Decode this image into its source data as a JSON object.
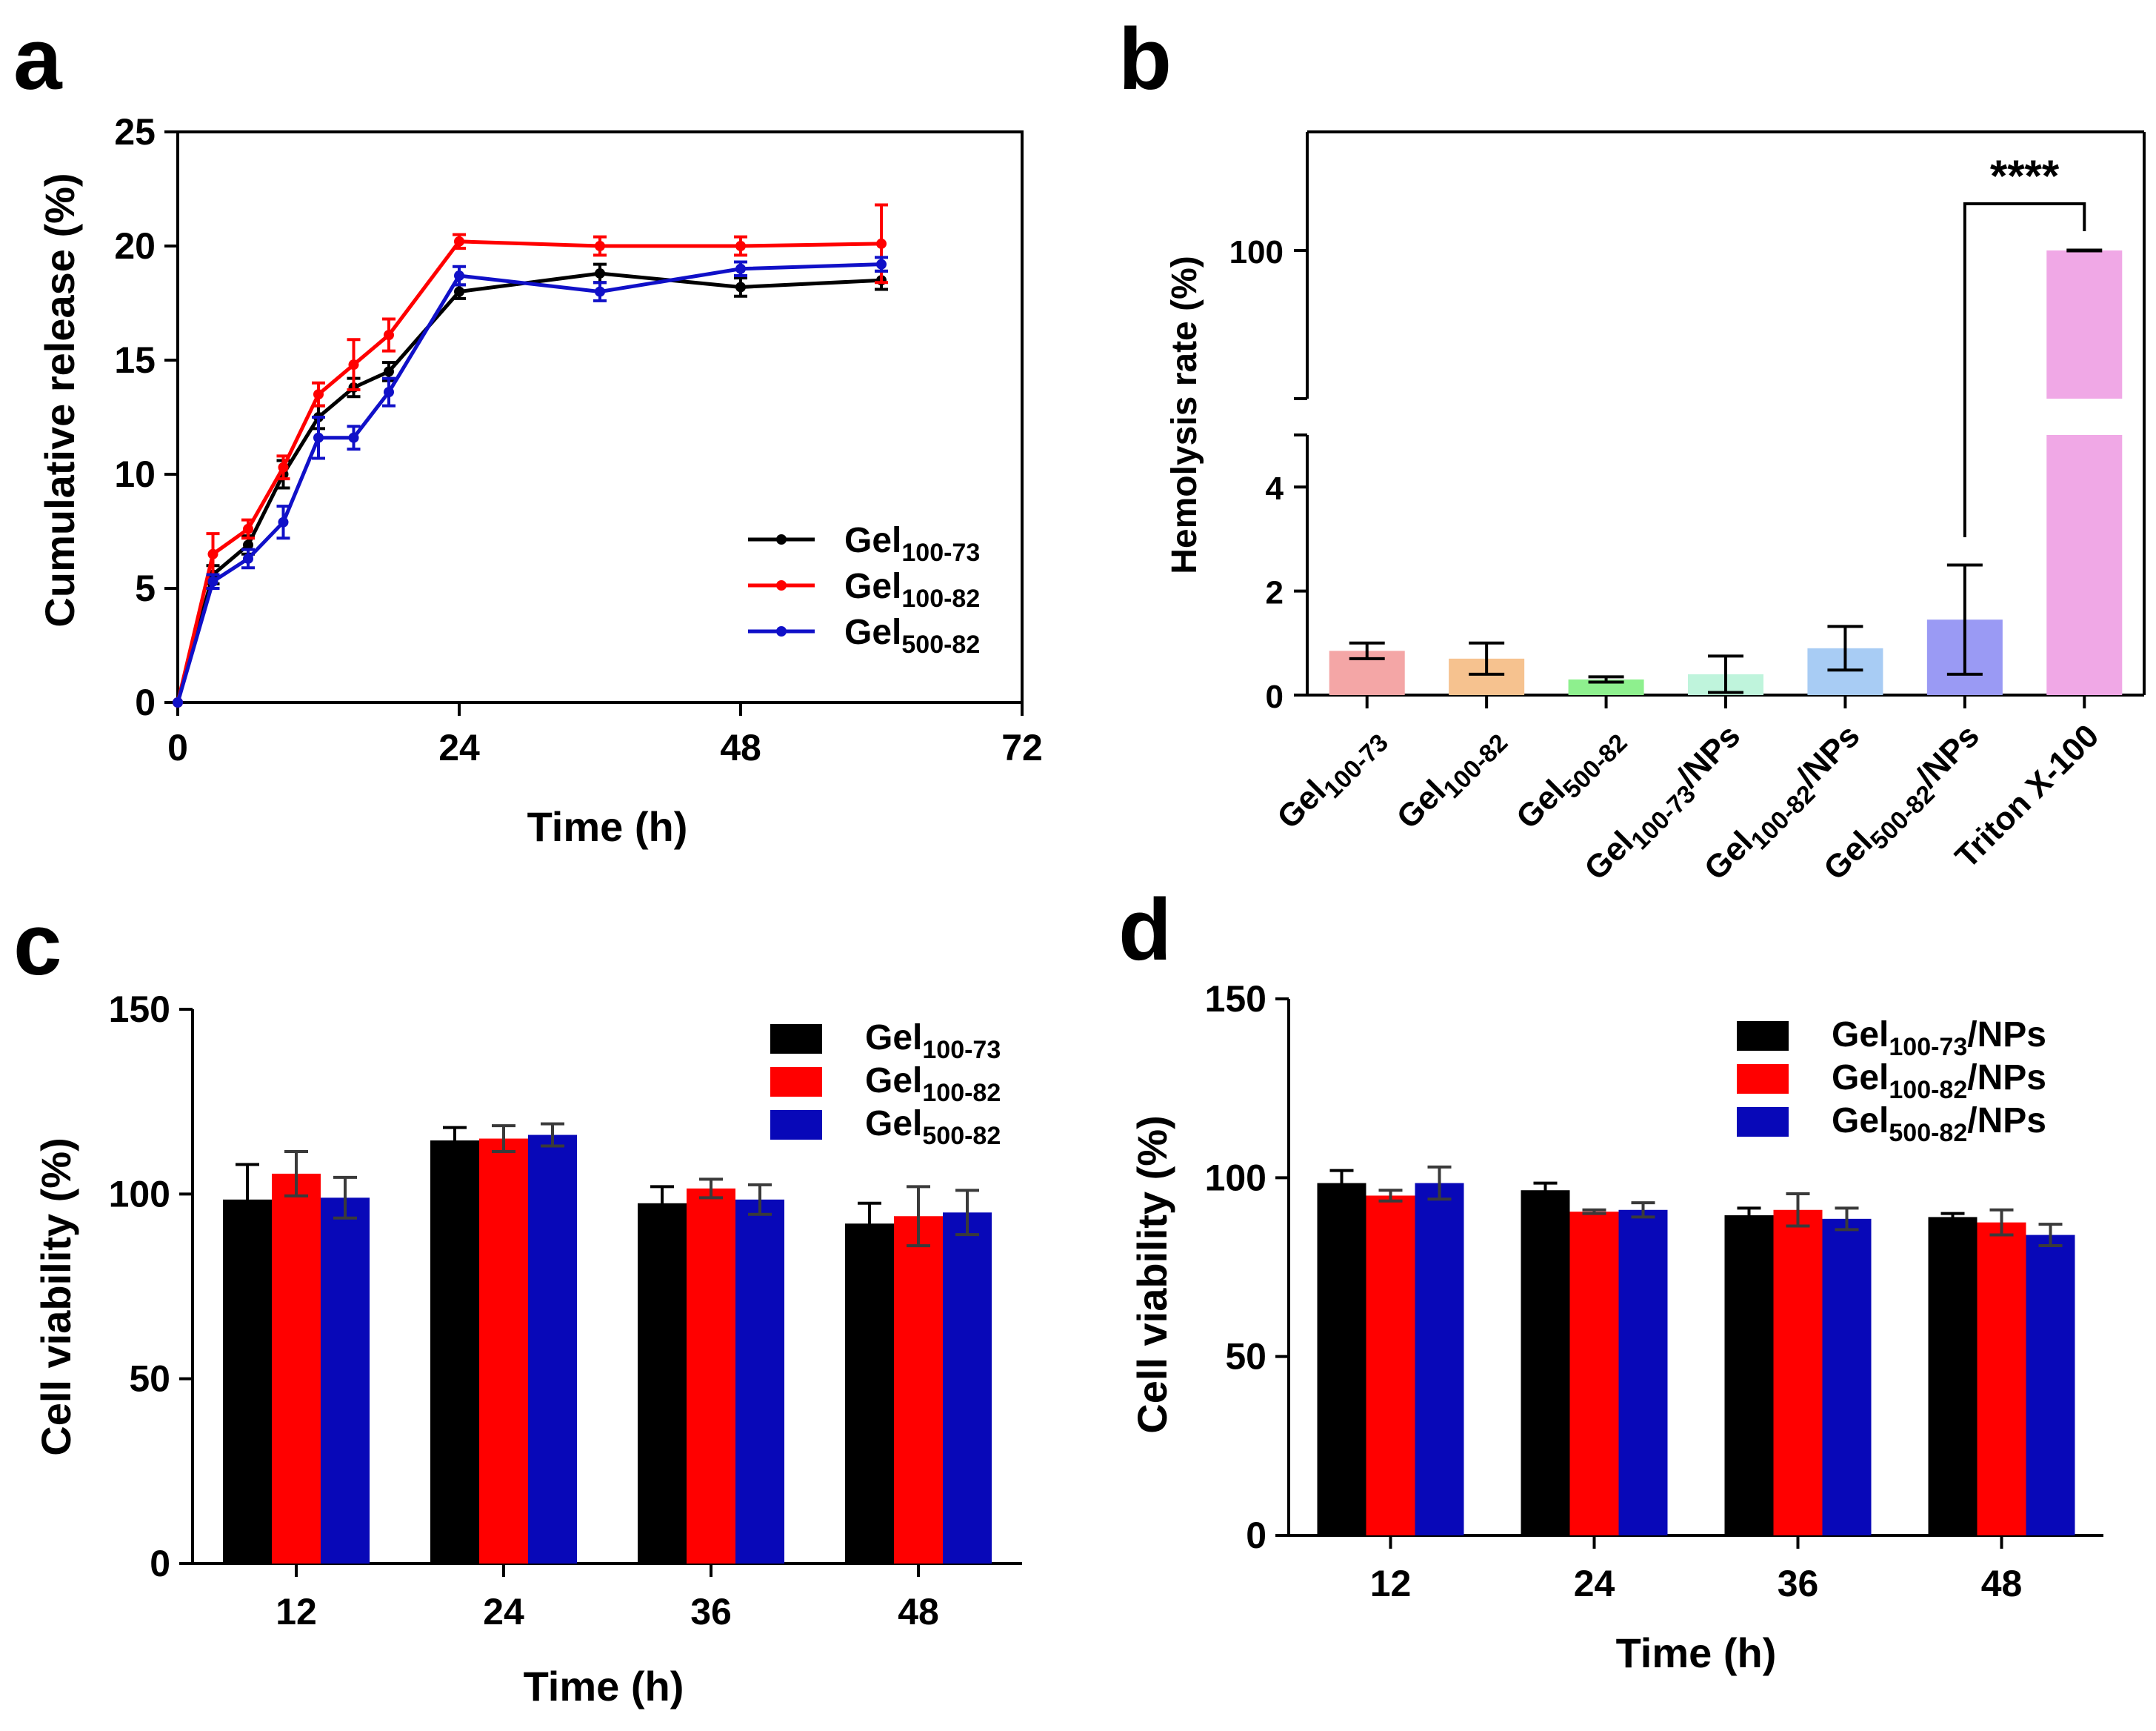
{
  "chart_data": [
    {
      "panel": "a",
      "type": "line",
      "xlabel": "Time (h)",
      "ylabel": "Cumulative release (%)",
      "xlim": [
        0,
        72
      ],
      "ylim": [
        0,
        25
      ],
      "xticks": [
        "0",
        "24",
        "48",
        "72"
      ],
      "yticks": [
        "0",
        "5",
        "10",
        "15",
        "20",
        "25"
      ],
      "x": [
        0,
        3,
        6,
        9,
        12,
        15,
        18,
        24,
        36,
        48,
        60
      ],
      "series": [
        {
          "name": "Gel",
          "sub": "100-73",
          "color": "#000000",
          "values": [
            0,
            5.6,
            6.9,
            10.0,
            12.5,
            13.8,
            14.5,
            18.0,
            18.8,
            18.2,
            18.5
          ],
          "errors": [
            0,
            0.4,
            0.4,
            0.6,
            0.5,
            0.4,
            0.4,
            0.3,
            0.4,
            0.4,
            0.4
          ]
        },
        {
          "name": "Gel",
          "sub": "100-82",
          "color": "#ff0000",
          "values": [
            0,
            6.5,
            7.6,
            10.3,
            13.5,
            14.8,
            16.1,
            20.2,
            20.0,
            20.0,
            20.1
          ],
          "errors": [
            0,
            0.9,
            0.4,
            0.5,
            0.5,
            1.1,
            0.7,
            0.3,
            0.4,
            0.4,
            1.7
          ]
        },
        {
          "name": "Gel",
          "sub": "500-82",
          "color": "#1010c8",
          "values": [
            0,
            5.3,
            6.3,
            7.9,
            11.6,
            11.6,
            13.6,
            18.7,
            18.0,
            19.0,
            19.2
          ],
          "errors": [
            0,
            0.3,
            0.4,
            0.7,
            0.9,
            0.5,
            0.6,
            0.4,
            0.4,
            0.3,
            0.3
          ]
        }
      ]
    },
    {
      "panel": "b",
      "type": "bar",
      "ylabel": "Hemolysis rate (%)",
      "broken_axis": {
        "lower_range": [
          0,
          5
        ],
        "upper_range": [
          75,
          120
        ]
      },
      "yticks": [
        "0",
        "2",
        "4",
        "100"
      ],
      "significance": "****",
      "categories": [
        {
          "name": "Gel",
          "sub": "100-73",
          "suffix": ""
        },
        {
          "name": "Gel",
          "sub": "100-82",
          "suffix": ""
        },
        {
          "name": "Gel",
          "sub": "500-82",
          "suffix": ""
        },
        {
          "name": "Gel",
          "sub": "100-73",
          "suffix": "/NPs"
        },
        {
          "name": "Gel",
          "sub": "100-82",
          "suffix": "/NPs"
        },
        {
          "name": "Gel",
          "sub": "500-82",
          "suffix": "/NPs"
        },
        {
          "name": "Triton X-100",
          "sub": "",
          "suffix": ""
        }
      ],
      "values": [
        0.85,
        0.7,
        0.3,
        0.4,
        0.9,
        1.45,
        100
      ],
      "errors": [
        0.15,
        0.3,
        0.05,
        0.35,
        0.42,
        1.05,
        0.3
      ],
      "colors": [
        "#f4a6a6",
        "#f6c28f",
        "#8ef08e",
        "#bff4dc",
        "#a8ccf4",
        "#9a9af4",
        "#f0a8e6"
      ]
    },
    {
      "panel": "c",
      "type": "bar",
      "xlabel": "Time (h)",
      "ylabel": "Cell viability (%)",
      "ylim": [
        0,
        150
      ],
      "yticks": [
        "0",
        "50",
        "100",
        "150"
      ],
      "categories": [
        "12",
        "24",
        "36",
        "48"
      ],
      "series": [
        {
          "name": "Gel",
          "sub": "100-73",
          "suffix": "",
          "color": "#000000",
          "values": [
            98.5,
            114.5,
            97.5,
            92.0
          ],
          "errors": [
            9.5,
            3.5,
            4.5,
            5.5
          ]
        },
        {
          "name": "Gel",
          "sub": "100-82",
          "suffix": "",
          "color": "#ff0000",
          "values": [
            105.5,
            115.0,
            101.5,
            94.0
          ],
          "errors": [
            6.0,
            3.5,
            2.5,
            8.0
          ]
        },
        {
          "name": "Gel",
          "sub": "500-82",
          "suffix": "",
          "color": "#0808b8",
          "values": [
            99.0,
            116.0,
            98.5,
            95.0
          ],
          "errors": [
            5.5,
            3.0,
            4.0,
            6.0
          ]
        }
      ]
    },
    {
      "panel": "d",
      "type": "bar",
      "xlabel": "Time (h)",
      "ylabel": "Cell viability (%)",
      "ylim": [
        0,
        150
      ],
      "yticks": [
        "0",
        "50",
        "100",
        "150"
      ],
      "categories": [
        "12",
        "24",
        "36",
        "48"
      ],
      "series": [
        {
          "name": "Gel",
          "sub": "100-73",
          "suffix": "/NPs",
          "color": "#000000",
          "values": [
            98.5,
            96.5,
            89.5,
            89.0
          ],
          "errors": [
            3.5,
            2.0,
            2.0,
            1.0
          ]
        },
        {
          "name": "Gel",
          "sub": "100-82",
          "suffix": "/NPs",
          "color": "#ff0000",
          "values": [
            95.0,
            90.5,
            91.0,
            87.5
          ],
          "errors": [
            1.5,
            0.5,
            4.5,
            3.5
          ]
        },
        {
          "name": "Gel",
          "sub": "500-82",
          "suffix": "/NPs",
          "color": "#0808b8",
          "values": [
            98.5,
            91.0,
            88.5,
            84.0
          ],
          "errors": [
            4.5,
            2.0,
            3.0,
            3.0
          ]
        }
      ]
    }
  ]
}
